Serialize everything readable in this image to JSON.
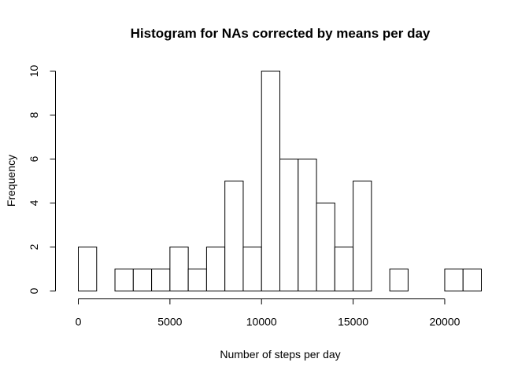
{
  "chart_data": {
    "type": "histogram",
    "title": "Histogram for NAs corrected by means per day",
    "xlabel": "Number of steps per day",
    "ylabel": "Frequency",
    "bin_width": 1000,
    "bins": [
      {
        "start": 0,
        "end": 1000,
        "count": 2
      },
      {
        "start": 1000,
        "end": 2000,
        "count": 0
      },
      {
        "start": 2000,
        "end": 3000,
        "count": 1
      },
      {
        "start": 3000,
        "end": 4000,
        "count": 1
      },
      {
        "start": 4000,
        "end": 5000,
        "count": 1
      },
      {
        "start": 5000,
        "end": 6000,
        "count": 2
      },
      {
        "start": 6000,
        "end": 7000,
        "count": 1
      },
      {
        "start": 7000,
        "end": 8000,
        "count": 2
      },
      {
        "start": 8000,
        "end": 9000,
        "count": 5
      },
      {
        "start": 9000,
        "end": 10000,
        "count": 2
      },
      {
        "start": 10000,
        "end": 11000,
        "count": 10
      },
      {
        "start": 11000,
        "end": 12000,
        "count": 6
      },
      {
        "start": 12000,
        "end": 13000,
        "count": 6
      },
      {
        "start": 13000,
        "end": 14000,
        "count": 4
      },
      {
        "start": 14000,
        "end": 15000,
        "count": 2
      },
      {
        "start": 15000,
        "end": 16000,
        "count": 5
      },
      {
        "start": 16000,
        "end": 17000,
        "count": 0
      },
      {
        "start": 17000,
        "end": 18000,
        "count": 1
      },
      {
        "start": 18000,
        "end": 19000,
        "count": 0
      },
      {
        "start": 19000,
        "end": 20000,
        "count": 0
      },
      {
        "start": 20000,
        "end": 21000,
        "count": 1
      },
      {
        "start": 21000,
        "end": 22000,
        "count": 1
      }
    ],
    "xlim": [
      0,
      22000
    ],
    "ylim": [
      0,
      10
    ],
    "x_ticks": [
      0,
      5000,
      10000,
      15000,
      20000
    ],
    "y_ticks": [
      0,
      2,
      4,
      6,
      8,
      10
    ],
    "grid": false,
    "legend": "none",
    "bar_fill": "#ffffff",
    "bar_stroke": "#000000"
  }
}
